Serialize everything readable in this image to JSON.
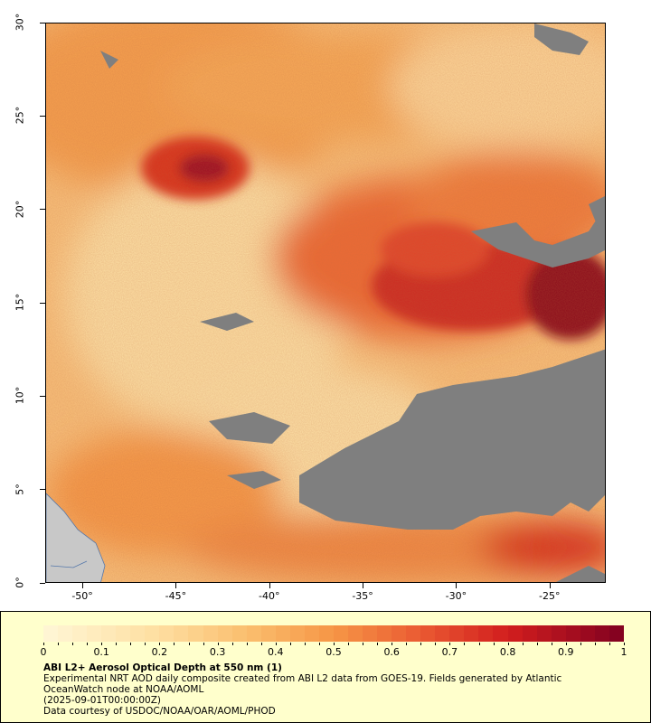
{
  "map": {
    "lon_ticks": [
      "-50°",
      "-45°",
      "-40°",
      "-35°",
      "-30°",
      "-25°"
    ],
    "lat_ticks": [
      "30°",
      "25°",
      "20°",
      "15°",
      "10°",
      "5°",
      "0°"
    ],
    "colors": {
      "no_data": "#7f7f7f",
      "land": "#c8c8c8",
      "low": "#fee8a8",
      "mid": "#f7a048",
      "high": "#e03a24",
      "very_high": "#8b0a1e"
    }
  },
  "legend": {
    "scale_labels": [
      "0",
      "0.1",
      "0.2",
      "0.3",
      "0.4",
      "0.5",
      "0.6",
      "0.7",
      "0.8",
      "0.9",
      "1"
    ],
    "title": "ABI L2+ Aerosol Optical Depth at 550 nm (1)",
    "description": "Experimental NRT AOD daily composite created from ABI L2 data from GOES-19. Fields generated by Atlantic OceanWatch node at NOAA/AOML",
    "timestamp": "(2025-09-01T00:00:00Z)",
    "credit": "Data courtesy of USDOC/NOAA/OAR/AOML/PHOD"
  }
}
